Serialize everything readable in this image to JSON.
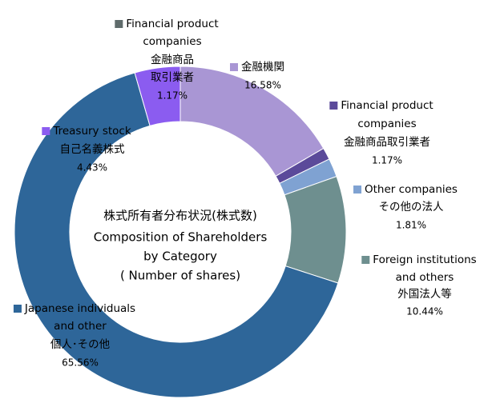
{
  "chart_data": {
    "type": "donut",
    "title": [
      "株式所有者分布状況(株式数)",
      "Composition of Shareholders",
      "by Category",
      "( Number of shares)"
    ],
    "labels": [
      [
        "金融機関"
      ],
      [
        "Financial product",
        "companies",
        "金融商品取引業者"
      ],
      [
        "Other companies",
        "その他の法人"
      ],
      [
        "Foreign institutions",
        "and others",
        "外国法人等"
      ],
      [
        "Japanese individuals",
        "and other",
        "個人･その他"
      ],
      [
        "Treasury stock",
        "自己名義株式"
      ]
    ],
    "values": [
      16.58,
      1.17,
      1.81,
      10.44,
      65.56,
      4.43
    ],
    "value_labels": [
      "16.58%",
      "1.17%",
      "1.81%",
      "10.44%",
      "65.56%",
      "4.43%"
    ],
    "colors": [
      "#a996d4",
      "#5b4a9a",
      "#7fa2d2",
      "#6e8f8f",
      "#2e6699",
      "#8b5cf0"
    ],
    "annotations": [
      {
        "text": [
          "Financial product",
          "companies",
          "金融商品",
          "取引業者"
        ],
        "value": 1.17,
        "value_label": "1.17%",
        "color": "#5f6b6b"
      }
    ]
  }
}
